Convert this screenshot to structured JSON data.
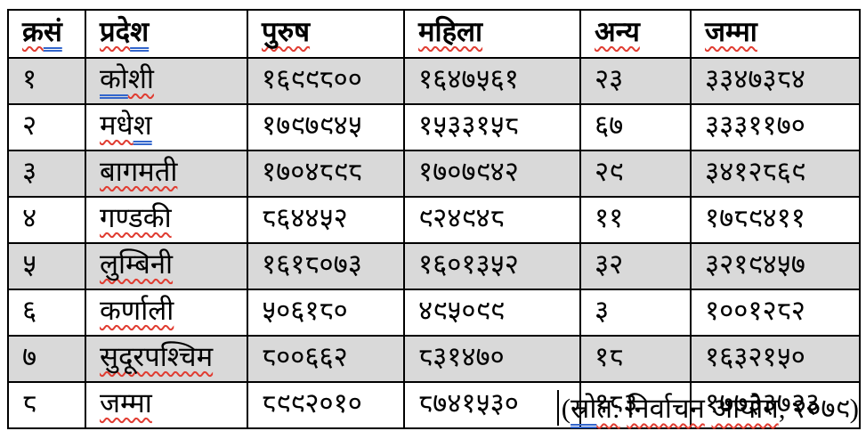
{
  "colors": {
    "row_shade": "#d9d9d9",
    "table_border": "#000000",
    "spellcheck_red": "#e03c31",
    "grammar_blue": "#3366cc",
    "text": "#000000"
  },
  "table": {
    "description_columns": [
      "serial-number",
      "province",
      "male",
      "female",
      "other",
      "total"
    ],
    "headers": [
      {
        "name": "sn",
        "segments": [
          [
            "क्र",
            "red"
          ],
          [
            "सं",
            "blue"
          ]
        ]
      },
      {
        "name": "province",
        "segments": [
          [
            "प्रदे",
            "red"
          ],
          [
            "श",
            "blue"
          ]
        ]
      },
      {
        "name": "male",
        "segments": [
          [
            "पुरुष",
            "red"
          ]
        ]
      },
      {
        "name": "female",
        "segments": [
          [
            "महिला",
            "red"
          ]
        ]
      },
      {
        "name": "other",
        "segments": [
          [
            "अन्य",
            "red"
          ]
        ]
      },
      {
        "name": "total",
        "segments": [
          [
            "जम्मा",
            "red"
          ]
        ]
      }
    ],
    "rows": [
      {
        "shaded": true,
        "sn": "१",
        "province": [
          [
            "को",
            "blue"
          ],
          [
            "शी",
            "red"
          ]
        ],
        "male": "१६९९८००",
        "female": "१६४७५६१",
        "other": "२३",
        "total": "३३४७३८४"
      },
      {
        "shaded": false,
        "sn": "२",
        "province": [
          [
            "मधे",
            "red"
          ],
          [
            "श",
            "blue"
          ]
        ],
        "male": "१७९७९४५",
        "female": "१५३३१५८",
        "other": "६७",
        "total": "३३३११७०"
      },
      {
        "shaded": true,
        "sn": "३",
        "province": [
          [
            "बागमती",
            "red"
          ]
        ],
        "male": "१७०४८९८",
        "female": "१७०७९४२",
        "other": "२९",
        "total": "३४१२८६९"
      },
      {
        "shaded": false,
        "sn": "४",
        "province": [
          [
            "गण्डकी",
            "red"
          ]
        ],
        "male": "८६४४५२",
        "female": "९२४९४८",
        "other": "११",
        "total": "१७८९४११"
      },
      {
        "shaded": true,
        "sn": "५",
        "province": [
          [
            "लुम्बिनी",
            "red"
          ]
        ],
        "male": "१६१८०७३",
        "female": "१६०१३५२",
        "other": "३२",
        "total": "३२१९४५७"
      },
      {
        "shaded": false,
        "sn": "६",
        "province": [
          [
            "कर्णाली",
            "red"
          ]
        ],
        "male": "५०६१८०",
        "female": "४९५०९९",
        "other": "३",
        "total": "१००१२८२"
      },
      {
        "shaded": true,
        "sn": "७",
        "province": [
          [
            "सुदूरपश्चिम",
            "red"
          ]
        ],
        "male": "८००६६२",
        "female": "८३१४७०",
        "other": "१८",
        "total": "१६३२१५०"
      },
      {
        "shaded": false,
        "sn": "८",
        "province": [
          [
            "जम्मा",
            "red"
          ]
        ],
        "male": "८९९२०१०",
        "female": "८७४१५३०",
        "other": "१८३",
        "total": "१७७३३७२३"
      }
    ]
  },
  "footer": {
    "full_text": "(स्रोत: निर्वाचन आयोग, २०७९)",
    "segments": [
      [
        "(",
        "none"
      ],
      [
        "स्रो",
        "blue"
      ],
      [
        "त:",
        "red"
      ],
      [
        " ",
        "none"
      ],
      [
        "निर्वाचन",
        "red"
      ],
      [
        " ",
        "none"
      ],
      [
        "आयोग",
        "red"
      ],
      [
        ", ",
        "none"
      ],
      [
        "२०७९",
        "none"
      ],
      [
        ")",
        "none"
      ]
    ]
  }
}
